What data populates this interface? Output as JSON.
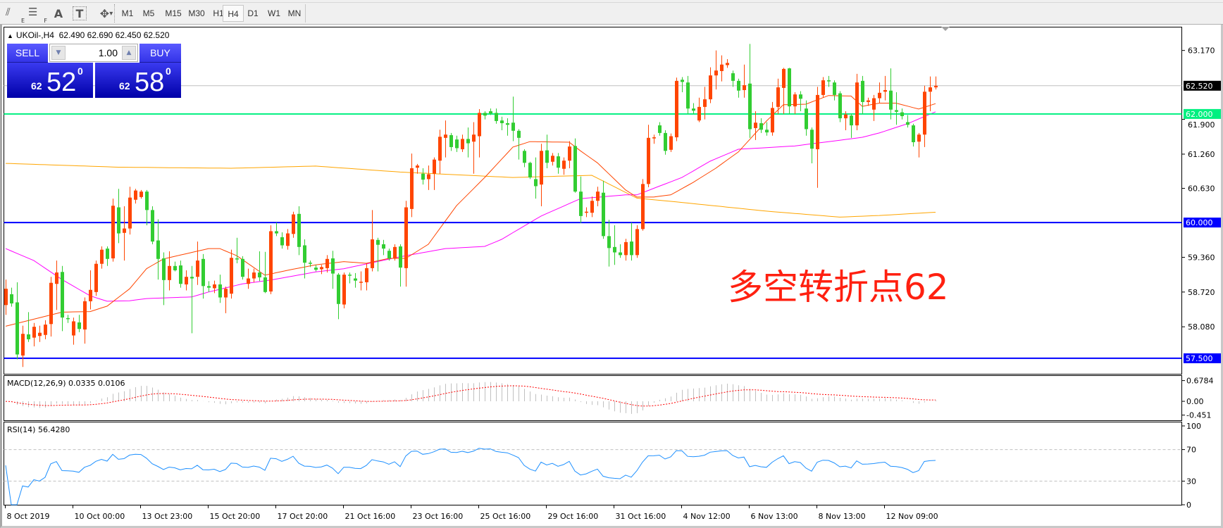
{
  "toolbar": {
    "tools": [
      {
        "icon": "line-studies-icon",
        "sub": "E"
      },
      {
        "icon": "fibonacci-icon",
        "sub": "F"
      },
      {
        "icon": "text-icon",
        "glyph": "A"
      },
      {
        "icon": "text-label-icon",
        "glyph": "T"
      },
      {
        "icon": "arrows-dropdown-icon",
        "glyph": "▾"
      }
    ],
    "timeframes": [
      "M1",
      "M5",
      "M15",
      "M30",
      "H1",
      "H4",
      "D1",
      "W1",
      "MN"
    ],
    "active_timeframe": "H4"
  },
  "header": {
    "symbol": "UKOil-,H4",
    "ohlc": "62.490 62.690 62.450 62.520"
  },
  "trade_panel": {
    "sell_label": "SELL",
    "buy_label": "BUY",
    "volume": "1.00",
    "sell_price": {
      "prefix": "62",
      "big": "52",
      "sup": "0"
    },
    "buy_price": {
      "prefix": "62",
      "big": "58",
      "sup": "0"
    }
  },
  "annotation": {
    "text": "多空转折点62",
    "color": "#ff2010"
  },
  "chart_data": {
    "type": "candlestick",
    "ylim": [
      57.207,
      63.6
    ],
    "price_ticks": [
      "63.170",
      "61.900",
      "61.260",
      "60.630",
      "59.360",
      "58.720",
      "58.080"
    ],
    "bid_line": {
      "price": 62.52,
      "label": "62.520",
      "color": "#c0c0c0"
    },
    "hlines": [
      {
        "price": 62.0,
        "label": "62.000",
        "color": "#00f080"
      },
      {
        "price": 60.0,
        "label": "60.000",
        "color": "#0000ff"
      },
      {
        "price": 57.5,
        "label": "57.500",
        "color": "#0000ff"
      }
    ],
    "colors": {
      "up": "#ff4500",
      "down": "#32cd32",
      "ma_fast": "#ff4500",
      "ma_mid": "#ff00ff",
      "ma_slow": "#ffa500",
      "macd_hist": "#c0c0c0",
      "macd_signal": "#ff0000",
      "rsi": "#1e90ff"
    },
    "time_labels": [
      "8 Oct 2019",
      "10 Oct 00:00",
      "13 Oct 23:00",
      "15 Oct 20:00",
      "17 Oct 20:00",
      "21 Oct 16:00",
      "23 Oct 16:00",
      "25 Oct 16:00",
      "29 Oct 16:00",
      "31 Oct 16:00",
      "4 Nov 12:00",
      "6 Nov 13:00",
      "8 Nov 13:00",
      "12 Nov 09:00"
    ],
    "candles_ohlc": [
      [
        58.48,
        58.95,
        58.3,
        58.78
      ],
      [
        58.68,
        58.8,
        58.45,
        58.51
      ],
      [
        58.53,
        58.9,
        57.48,
        57.57
      ],
      [
        57.55,
        58.1,
        57.34,
        57.95
      ],
      [
        57.94,
        58.35,
        57.8,
        57.85
      ],
      [
        57.88,
        58.15,
        57.72,
        58.08
      ],
      [
        57.91,
        58.1,
        57.8,
        57.97
      ],
      [
        57.93,
        58.2,
        57.85,
        58.12
      ],
      [
        58.13,
        59.0,
        57.9,
        58.89
      ],
      [
        58.87,
        59.3,
        58.39,
        59.08
      ],
      [
        59.09,
        59.2,
        58.0,
        58.25
      ],
      [
        58.24,
        58.3,
        58.15,
        58.22
      ],
      [
        57.92,
        58.25,
        57.75,
        58.18
      ],
      [
        58.16,
        58.3,
        57.98,
        58.04
      ],
      [
        58.03,
        58.62,
        57.77,
        58.55
      ],
      [
        58.55,
        59.12,
        58.4,
        58.76
      ],
      [
        58.72,
        59.3,
        58.65,
        59.24
      ],
      [
        59.24,
        59.56,
        59.15,
        59.5
      ],
      [
        59.52,
        59.56,
        59.2,
        59.33
      ],
      [
        59.34,
        60.44,
        59.28,
        60.31
      ],
      [
        60.28,
        60.62,
        59.62,
        59.8
      ],
      [
        59.81,
        60.3,
        59.3,
        59.89
      ],
      [
        59.89,
        60.66,
        59.78,
        60.46
      ],
      [
        60.42,
        60.62,
        60.35,
        60.59
      ],
      [
        60.47,
        60.6,
        60.44,
        60.57
      ],
      [
        60.57,
        60.6,
        59.95,
        60.23
      ],
      [
        60.23,
        60.3,
        59.6,
        59.65
      ],
      [
        59.67,
        60.06,
        58.95,
        59.33
      ],
      [
        59.34,
        59.45,
        58.48,
        58.94
      ],
      [
        58.94,
        59.47,
        58.75,
        59.2
      ],
      [
        59.2,
        59.28,
        59.1,
        59.12
      ],
      [
        59.21,
        59.3,
        58.8,
        58.87
      ],
      [
        58.86,
        59.12,
        58.75,
        59.0
      ],
      [
        59.0,
        59.2,
        57.96,
        58.97
      ],
      [
        59.0,
        59.65,
        58.85,
        59.3
      ],
      [
        59.33,
        59.42,
        58.6,
        58.83
      ],
      [
        58.83,
        58.92,
        58.72,
        58.8
      ],
      [
        58.79,
        58.93,
        58.7,
        58.86
      ],
      [
        58.86,
        59.04,
        58.52,
        58.62
      ],
      [
        58.62,
        58.82,
        58.33,
        58.78
      ],
      [
        58.69,
        59.5,
        58.6,
        59.35
      ],
      [
        59.34,
        59.72,
        59.25,
        59.32
      ],
      [
        59.33,
        59.38,
        58.95,
        59.0
      ],
      [
        58.87,
        59.15,
        58.78,
        58.97
      ],
      [
        58.97,
        59.15,
        58.9,
        59.08
      ],
      [
        59.08,
        59.47,
        58.92,
        58.99
      ],
      [
        58.99,
        59.46,
        58.7,
        58.72
      ],
      [
        58.73,
        59.95,
        58.68,
        59.84
      ],
      [
        59.84,
        60.0,
        59.75,
        59.8
      ],
      [
        59.73,
        59.82,
        59.52,
        59.58
      ],
      [
        59.57,
        59.88,
        59.5,
        59.8
      ],
      [
        59.79,
        60.2,
        59.72,
        60.15
      ],
      [
        60.16,
        60.3,
        59.4,
        59.55
      ],
      [
        59.58,
        59.69,
        58.97,
        59.26
      ],
      [
        59.26,
        59.3,
        59.18,
        59.24
      ],
      [
        59.17,
        59.22,
        59.1,
        59.13
      ],
      [
        59.14,
        59.22,
        59.05,
        59.18
      ],
      [
        59.16,
        59.4,
        59.08,
        59.33
      ],
      [
        59.34,
        59.48,
        58.78,
        59.06
      ],
      [
        59.04,
        59.07,
        58.22,
        58.5
      ],
      [
        58.49,
        59.08,
        58.42,
        59.04
      ],
      [
        59.04,
        59.08,
        58.88,
        59.03
      ],
      [
        58.97,
        59.07,
        58.8,
        58.93
      ],
      [
        58.9,
        59.1,
        58.75,
        58.91
      ],
      [
        58.9,
        59.25,
        58.75,
        59.16
      ],
      [
        59.16,
        60.23,
        59.1,
        59.69
      ],
      [
        59.68,
        59.72,
        59.1,
        59.59
      ],
      [
        59.6,
        59.68,
        59.4,
        59.52
      ],
      [
        59.48,
        59.52,
        59.3,
        59.34
      ],
      [
        59.34,
        59.6,
        59.3,
        59.55
      ],
      [
        59.56,
        59.6,
        58.82,
        59.17
      ],
      [
        59.16,
        60.4,
        58.82,
        60.28
      ],
      [
        60.25,
        61.27,
        60.1,
        61.0
      ],
      [
        61.01,
        61.08,
        60.9,
        61.05
      ],
      [
        60.9,
        61.0,
        60.7,
        60.79
      ],
      [
        60.8,
        61.05,
        60.6,
        60.89
      ],
      [
        60.9,
        61.2,
        60.6,
        61.16
      ],
      [
        61.14,
        61.71,
        60.9,
        61.58
      ],
      [
        61.56,
        61.88,
        61.2,
        61.62
      ],
      [
        61.61,
        61.65,
        61.32,
        61.39
      ],
      [
        61.53,
        61.6,
        61.3,
        61.37
      ],
      [
        61.35,
        61.62,
        61.3,
        61.54
      ],
      [
        61.54,
        61.75,
        61.2,
        61.46
      ],
      [
        61.49,
        61.85,
        60.9,
        61.62
      ],
      [
        61.59,
        62.09,
        61.2,
        62.02
      ],
      [
        62.02,
        62.05,
        61.9,
        61.97
      ],
      [
        62.05,
        62.1,
        61.98,
        62.01
      ],
      [
        62.02,
        62.1,
        61.82,
        61.87
      ],
      [
        61.88,
        61.95,
        61.7,
        61.83
      ],
      [
        61.83,
        61.92,
        61.6,
        61.8
      ],
      [
        61.84,
        62.32,
        61.5,
        61.69
      ],
      [
        61.69,
        61.72,
        61.16,
        61.56
      ],
      [
        61.32,
        61.35,
        61.02,
        61.1
      ],
      [
        61.1,
        61.12,
        60.8,
        60.83
      ],
      [
        60.8,
        61.2,
        60.44,
        60.67
      ],
      [
        60.7,
        61.45,
        60.3,
        61.32
      ],
      [
        61.33,
        61.62,
        61.0,
        61.1
      ],
      [
        61.12,
        61.28,
        61.05,
        61.23
      ],
      [
        61.22,
        61.28,
        60.9,
        61.01
      ],
      [
        60.99,
        61.2,
        60.88,
        61.14
      ],
      [
        61.14,
        61.5,
        61.0,
        61.4
      ],
      [
        61.41,
        61.55,
        60.55,
        60.57
      ],
      [
        60.57,
        60.85,
        59.99,
        60.12
      ],
      [
        60.18,
        60.28,
        60.1,
        60.2
      ],
      [
        60.18,
        60.48,
        60.1,
        60.4
      ],
      [
        60.4,
        60.66,
        60.3,
        60.57
      ],
      [
        60.55,
        60.77,
        59.7,
        59.75
      ],
      [
        59.75,
        60.05,
        59.19,
        59.53
      ],
      [
        59.55,
        59.95,
        59.22,
        59.45
      ],
      [
        59.45,
        59.6,
        59.35,
        59.4
      ],
      [
        59.4,
        59.7,
        59.3,
        59.64
      ],
      [
        59.65,
        60.0,
        59.3,
        59.4
      ],
      [
        59.4,
        59.95,
        59.35,
        59.88
      ],
      [
        59.88,
        60.8,
        59.85,
        60.71
      ],
      [
        60.71,
        61.8,
        60.65,
        61.56
      ],
      [
        61.55,
        61.62,
        61.45,
        61.57
      ],
      [
        61.79,
        61.85,
        61.6,
        61.65
      ],
      [
        61.65,
        61.7,
        61.25,
        61.32
      ],
      [
        61.34,
        61.64,
        61.3,
        61.59
      ],
      [
        61.57,
        62.67,
        61.5,
        62.61
      ],
      [
        62.63,
        62.68,
        62.4,
        62.59
      ],
      [
        62.58,
        62.7,
        62.0,
        62.1
      ],
      [
        62.1,
        62.2,
        62.0,
        62.06
      ],
      [
        61.88,
        62.3,
        61.85,
        62.13
      ],
      [
        62.13,
        62.5,
        61.9,
        62.27
      ],
      [
        62.27,
        62.86,
        62.2,
        62.71
      ],
      [
        62.71,
        63.17,
        62.45,
        62.8
      ],
      [
        62.79,
        63.08,
        62.6,
        62.91
      ],
      [
        62.9,
        63.01,
        62.85,
        62.94
      ],
      [
        62.75,
        62.8,
        62.5,
        62.61
      ],
      [
        62.61,
        62.65,
        62.3,
        62.43
      ],
      [
        62.44,
        62.91,
        62.3,
        62.53
      ],
      [
        62.56,
        63.29,
        61.56,
        61.72
      ],
      [
        61.74,
        62.05,
        61.52,
        61.84
      ],
      [
        61.83,
        61.92,
        61.65,
        61.71
      ],
      [
        61.71,
        61.85,
        61.6,
        61.66
      ],
      [
        61.66,
        62.22,
        61.6,
        62.11
      ],
      [
        62.13,
        62.65,
        62.0,
        62.49
      ],
      [
        62.48,
        62.85,
        62.0,
        62.83
      ],
      [
        62.84,
        62.85,
        62.0,
        62.14
      ],
      [
        62.14,
        62.4,
        62.0,
        62.36
      ],
      [
        62.36,
        62.42,
        62.05,
        62.28
      ],
      [
        62.1,
        62.25,
        61.6,
        61.72
      ],
      [
        61.71,
        61.75,
        61.09,
        61.36
      ],
      [
        61.35,
        62.5,
        60.64,
        62.35
      ],
      [
        62.35,
        62.68,
        62.3,
        62.62
      ],
      [
        62.62,
        62.7,
        62.5,
        62.6
      ],
      [
        62.58,
        62.62,
        62.25,
        62.35
      ],
      [
        62.38,
        62.42,
        61.85,
        61.92
      ],
      [
        61.92,
        62.05,
        61.7,
        61.99
      ],
      [
        61.97,
        62.0,
        61.56,
        61.79
      ],
      [
        61.79,
        62.74,
        61.7,
        62.58
      ],
      [
        62.61,
        62.7,
        62.0,
        62.22
      ],
      [
        62.22,
        62.3,
        62.15,
        62.25
      ],
      [
        62.08,
        62.35,
        61.87,
        62.29
      ],
      [
        62.29,
        62.58,
        62.2,
        62.39
      ],
      [
        62.41,
        62.7,
        62.25,
        62.44
      ],
      [
        62.43,
        62.84,
        61.9,
        62.08
      ],
      [
        62.07,
        62.4,
        61.8,
        62.04
      ],
      [
        62.03,
        62.1,
        61.9,
        61.96
      ],
      [
        61.85,
        61.98,
        61.75,
        61.8
      ],
      [
        61.79,
        61.82,
        61.4,
        61.48
      ],
      [
        61.49,
        61.65,
        61.2,
        61.62
      ],
      [
        61.62,
        62.52,
        61.39,
        62.41
      ],
      [
        62.41,
        62.69,
        62.05,
        62.49
      ],
      [
        62.49,
        62.69,
        62.45,
        62.52
      ]
    ],
    "ma_fast_anchors": [
      [
        0,
        58.09
      ],
      [
        10,
        58.35
      ],
      [
        15,
        58.36
      ],
      [
        18,
        58.46
      ],
      [
        22,
        58.78
      ],
      [
        25,
        59.15
      ],
      [
        28,
        59.33
      ],
      [
        36,
        59.52
      ],
      [
        38,
        59.52
      ],
      [
        41,
        59.39
      ],
      [
        46,
        59.03
      ],
      [
        50,
        59.12
      ],
      [
        55,
        59.22
      ],
      [
        60,
        59.28
      ],
      [
        64,
        59.25
      ],
      [
        68,
        59.34
      ],
      [
        71,
        59.34
      ],
      [
        75,
        59.6
      ],
      [
        80,
        60.31
      ],
      [
        85,
        60.83
      ],
      [
        90,
        61.39
      ],
      [
        93,
        61.49
      ],
      [
        100,
        61.48
      ],
      [
        102,
        61.32
      ],
      [
        105,
        61.1
      ],
      [
        110,
        60.6
      ],
      [
        112,
        60.47
      ],
      [
        115,
        60.47
      ],
      [
        118,
        60.51
      ],
      [
        122,
        60.74
      ],
      [
        126,
        61.0
      ],
      [
        130,
        61.3
      ],
      [
        135,
        61.87
      ],
      [
        138,
        62.17
      ],
      [
        142,
        62.18
      ],
      [
        146,
        62.34
      ],
      [
        150,
        62.33
      ],
      [
        152,
        62.14
      ],
      [
        155,
        62.2
      ],
      [
        158,
        62.2
      ],
      [
        162,
        62.09
      ],
      [
        165,
        62.19
      ]
    ],
    "ma_mid_anchors": [
      [
        0,
        59.52
      ],
      [
        5,
        59.3
      ],
      [
        10,
        58.95
      ],
      [
        15,
        58.65
      ],
      [
        18,
        58.55
      ],
      [
        22,
        58.56
      ],
      [
        25,
        58.6
      ],
      [
        33,
        58.63
      ],
      [
        36,
        58.72
      ],
      [
        42,
        58.87
      ],
      [
        47,
        58.94
      ],
      [
        55,
        59.09
      ],
      [
        60,
        59.15
      ],
      [
        70,
        59.37
      ],
      [
        78,
        59.52
      ],
      [
        85,
        59.56
      ],
      [
        88,
        59.69
      ],
      [
        95,
        60.12
      ],
      [
        102,
        60.44
      ],
      [
        110,
        60.51
      ],
      [
        112,
        60.51
      ],
      [
        120,
        60.83
      ],
      [
        125,
        61.13
      ],
      [
        130,
        61.35
      ],
      [
        140,
        61.41
      ],
      [
        146,
        61.49
      ],
      [
        152,
        61.57
      ],
      [
        155,
        61.65
      ],
      [
        160,
        61.82
      ],
      [
        165,
        62.04
      ]
    ],
    "ma_slow_anchors": [
      [
        0,
        61.09
      ],
      [
        20,
        61.02
      ],
      [
        40,
        61.0
      ],
      [
        55,
        61.04
      ],
      [
        70,
        60.93
      ],
      [
        90,
        60.83
      ],
      [
        104,
        60.87
      ],
      [
        112,
        60.45
      ],
      [
        120,
        60.37
      ],
      [
        135,
        60.21
      ],
      [
        148,
        60.1
      ],
      [
        155,
        60.13
      ],
      [
        165,
        60.19
      ]
    ],
    "macd": {
      "label": "MACD(12,26,9) 0.0335 0.0106",
      "ticks": [
        "0.6784",
        "0.00",
        "-0.451"
      ],
      "tick_values": [
        0.6784,
        0,
        -0.451
      ],
      "ylim": [
        -0.632,
        0.842
      ]
    },
    "rsi": {
      "label": "RSI(14) 56.4280",
      "ticks": [
        "100",
        "70",
        "30",
        "0"
      ],
      "tick_values": [
        100,
        70,
        30,
        0
      ],
      "levels": [
        70,
        30
      ],
      "ylim": [
        0,
        100
      ]
    }
  }
}
